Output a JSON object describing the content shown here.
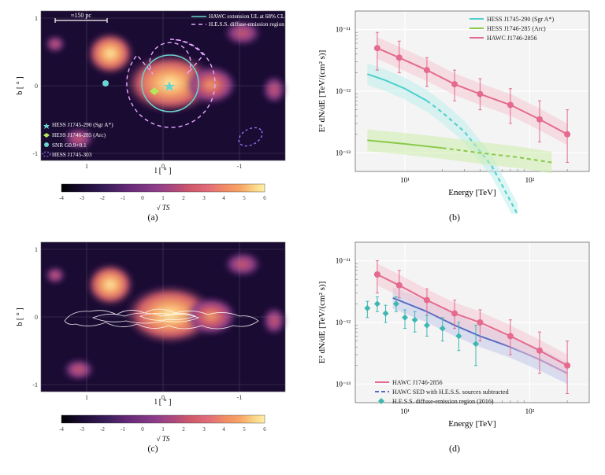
{
  "captions": {
    "a": "(a)",
    "b": "(b)",
    "c": "(c)",
    "d": "(d)"
  },
  "skymap": {
    "type": "heatmap",
    "xlabel": "l [ ° ]",
    "ylabel": "b [ ° ]",
    "xticks": [
      "1",
      "0",
      "-1"
    ],
    "yticks": [
      "-1",
      "0",
      "1"
    ],
    "xlim": [
      1.6,
      -1.6
    ],
    "ylim": [
      -1.1,
      1.1
    ],
    "background_color": "#1a0b33",
    "blob_colors": [
      "#fdf0a8",
      "#f7a565",
      "#e06b7a",
      "#8b3d8a",
      "#3a1d5a"
    ],
    "colorbar": {
      "label": "√ TS",
      "label_fontsize": 10,
      "ticks": [
        "-4",
        "-3",
        "-2",
        "-1",
        "0",
        "1",
        "2",
        "3",
        "4",
        "5",
        "6"
      ],
      "gradient": [
        "#000000",
        "#1a0b33",
        "#3a1d5a",
        "#6b2b7a",
        "#8b3d8a",
        "#b0497a",
        "#d05a6a",
        "#e06b7a",
        "#f08a65",
        "#f7a565",
        "#fbcf80",
        "#fdf0a8"
      ]
    },
    "scale_bar": "≈150 pc",
    "overlays": {
      "hawc_ext_label": "HAWC extension UL at 68% CL",
      "hawc_ext_color": "#6ad5cf",
      "hess_diff_label": "H.E.S.S. diffuse-emission region (2016)",
      "hess_diff_color": "#e6a8ff",
      "m1": "HESS J1745-290 (Sgr A*)",
      "m1_color": "#6ad5cf",
      "m2": "HESS J1746-285 (Arc)",
      "m2_color": "#b4e85b",
      "m3": "SNR G0.9+0.1",
      "m3_color": "#6ad5cf",
      "m4": "HESS J1745-303",
      "m4_color": "#9a7bff"
    }
  },
  "spectrum_b": {
    "type": "line+scatter",
    "xlabel": "Energy [TeV]",
    "ylabel": "E² dN/dE [TeV/(cm² s)]",
    "label_fontsize": 11,
    "xscale": "log",
    "yscale": "log",
    "xlim": [
      4,
      300
    ],
    "ylim": [
      5e-14,
      2e-11
    ],
    "xticks": [
      "10¹",
      "10²"
    ],
    "yticks": [
      "10⁻¹³",
      "10⁻¹²",
      "10⁻¹¹"
    ],
    "bg": "#f4f4f4",
    "grid_color": "#ffffff",
    "legend": [
      {
        "label": "HESS J1745-290 (Sgr A*)",
        "color": "#4dd0cd"
      },
      {
        "label": "HESS J1746-285 (Arc)",
        "color": "#8bc94a"
      },
      {
        "label": "HAWC J1746-2856",
        "color": "#e46b8e"
      }
    ],
    "series": {
      "sgrA": {
        "color": "#4dd0cd",
        "fill": "#bdeeeb",
        "line_width": 2,
        "x": [
          5,
          7,
          10,
          15,
          20,
          30,
          50,
          80
        ],
        "y": [
          1.9e-12,
          1.5e-12,
          1.1e-12,
          7e-13,
          4.5e-13,
          2.2e-13,
          6e-14,
          1e-14
        ],
        "dash_from": 20
      },
      "arc": {
        "color": "#8bc94a",
        "fill": "#ccedab",
        "line_width": 2,
        "x": [
          5,
          10,
          20,
          40,
          80,
          150
        ],
        "y": [
          1.6e-13,
          1.4e-13,
          1.2e-13,
          1e-13,
          8.5e-14,
          7e-14
        ],
        "dash_from": 40
      },
      "hawc": {
        "color": "#e46b8e",
        "fill": "#f6c6d4",
        "line_width": 2,
        "marker": "circle",
        "marker_size": 4,
        "x": [
          6,
          9,
          15,
          25,
          40,
          70,
          120,
          200
        ],
        "y": [
          5e-12,
          3.5e-12,
          2.2e-12,
          1.3e-12,
          9e-13,
          6e-13,
          3.5e-13,
          2e-13
        ],
        "yerr": [
          [
            2.2e-12,
            9e-12
          ],
          [
            2e-12,
            6.5e-12
          ],
          [
            1.2e-12,
            3.5e-12
          ],
          [
            7e-13,
            2.2e-12
          ],
          [
            5e-13,
            1.6e-12
          ],
          [
            3e-13,
            1.1e-12
          ],
          [
            1.5e-13,
            7e-13
          ],
          [
            7e-14,
            5e-13
          ]
        ]
      }
    }
  },
  "spectrum_d": {
    "type": "line+scatter",
    "xlabel": "Energy [TeV]",
    "ylabel": "E² dN/dE [TeV/(cm² s)]",
    "xscale": "log",
    "yscale": "log",
    "xlim": [
      4,
      300
    ],
    "ylim": [
      5e-14,
      2e-11
    ],
    "xticks": [
      "10¹",
      "10²"
    ],
    "yticks": [
      "10⁻¹³",
      "10⁻¹²",
      "10⁻¹¹"
    ],
    "bg": "#f4f4f4",
    "grid_color": "#ffffff",
    "legend": [
      {
        "label": "HAWC J1746-2856",
        "color": "#e46b8e",
        "style": "band"
      },
      {
        "label": "HAWC SED with H.E.S.S. sources subtracted",
        "color": "#5c6bc0",
        "style": "dashband"
      },
      {
        "label": "H.E.S.S. diffuse-emission region (2016)",
        "color": "#3db8b0",
        "style": "points"
      }
    ],
    "series": {
      "hawc": {
        "color": "#e46b8e",
        "fill": "#f6c6d4",
        "line_width": 2,
        "marker": "circle",
        "marker_size": 4,
        "x": [
          6,
          9,
          15,
          25,
          40,
          70,
          120,
          200
        ],
        "y": [
          6e-12,
          4e-12,
          2.3e-12,
          1.4e-12,
          1e-12,
          6e-13,
          3.5e-13,
          2e-13
        ],
        "yerr": [
          [
            3e-12,
            1e-11
          ],
          [
            2.5e-12,
            7e-12
          ],
          [
            1.3e-12,
            3.5e-12
          ],
          [
            8e-13,
            2.3e-12
          ],
          [
            5e-13,
            1.6e-12
          ],
          [
            3e-13,
            1.1e-12
          ],
          [
            1.5e-13,
            7e-13
          ],
          [
            7e-14,
            5e-13
          ]
        ]
      },
      "hawc_sub": {
        "color": "#5c6bc0",
        "fill": "#c3c9ea",
        "line_width": 2,
        "dash": "6,4",
        "x": [
          8,
          15,
          25,
          40,
          70,
          120,
          200
        ],
        "y": [
          2.5e-12,
          1.5e-12,
          9e-13,
          6e-13,
          4e-13,
          2.5e-13,
          1.5e-13
        ]
      },
      "hess_diff": {
        "color": "#3db8b0",
        "marker": "diamond",
        "marker_size": 5,
        "x": [
          5,
          6,
          7,
          8.5,
          10,
          12,
          15,
          20,
          27,
          37
        ],
        "y": [
          1.7e-12,
          2e-12,
          1.4e-12,
          2e-12,
          1.2e-12,
          1.1e-12,
          9e-13,
          8e-13,
          6e-13,
          4.5e-13
        ],
        "yerr": [
          [
            1.2e-12,
            2.2e-12
          ],
          [
            1.5e-12,
            2.6e-12
          ],
          [
            1e-12,
            1.9e-12
          ],
          [
            1.5e-12,
            2.6e-12
          ],
          [
            8e-13,
            1.6e-12
          ],
          [
            7e-13,
            1.5e-12
          ],
          [
            6e-13,
            1.3e-12
          ],
          [
            5e-13,
            1.2e-12
          ],
          [
            3.5e-13,
            1e-12
          ],
          [
            2e-13,
            9e-13
          ]
        ]
      }
    }
  }
}
